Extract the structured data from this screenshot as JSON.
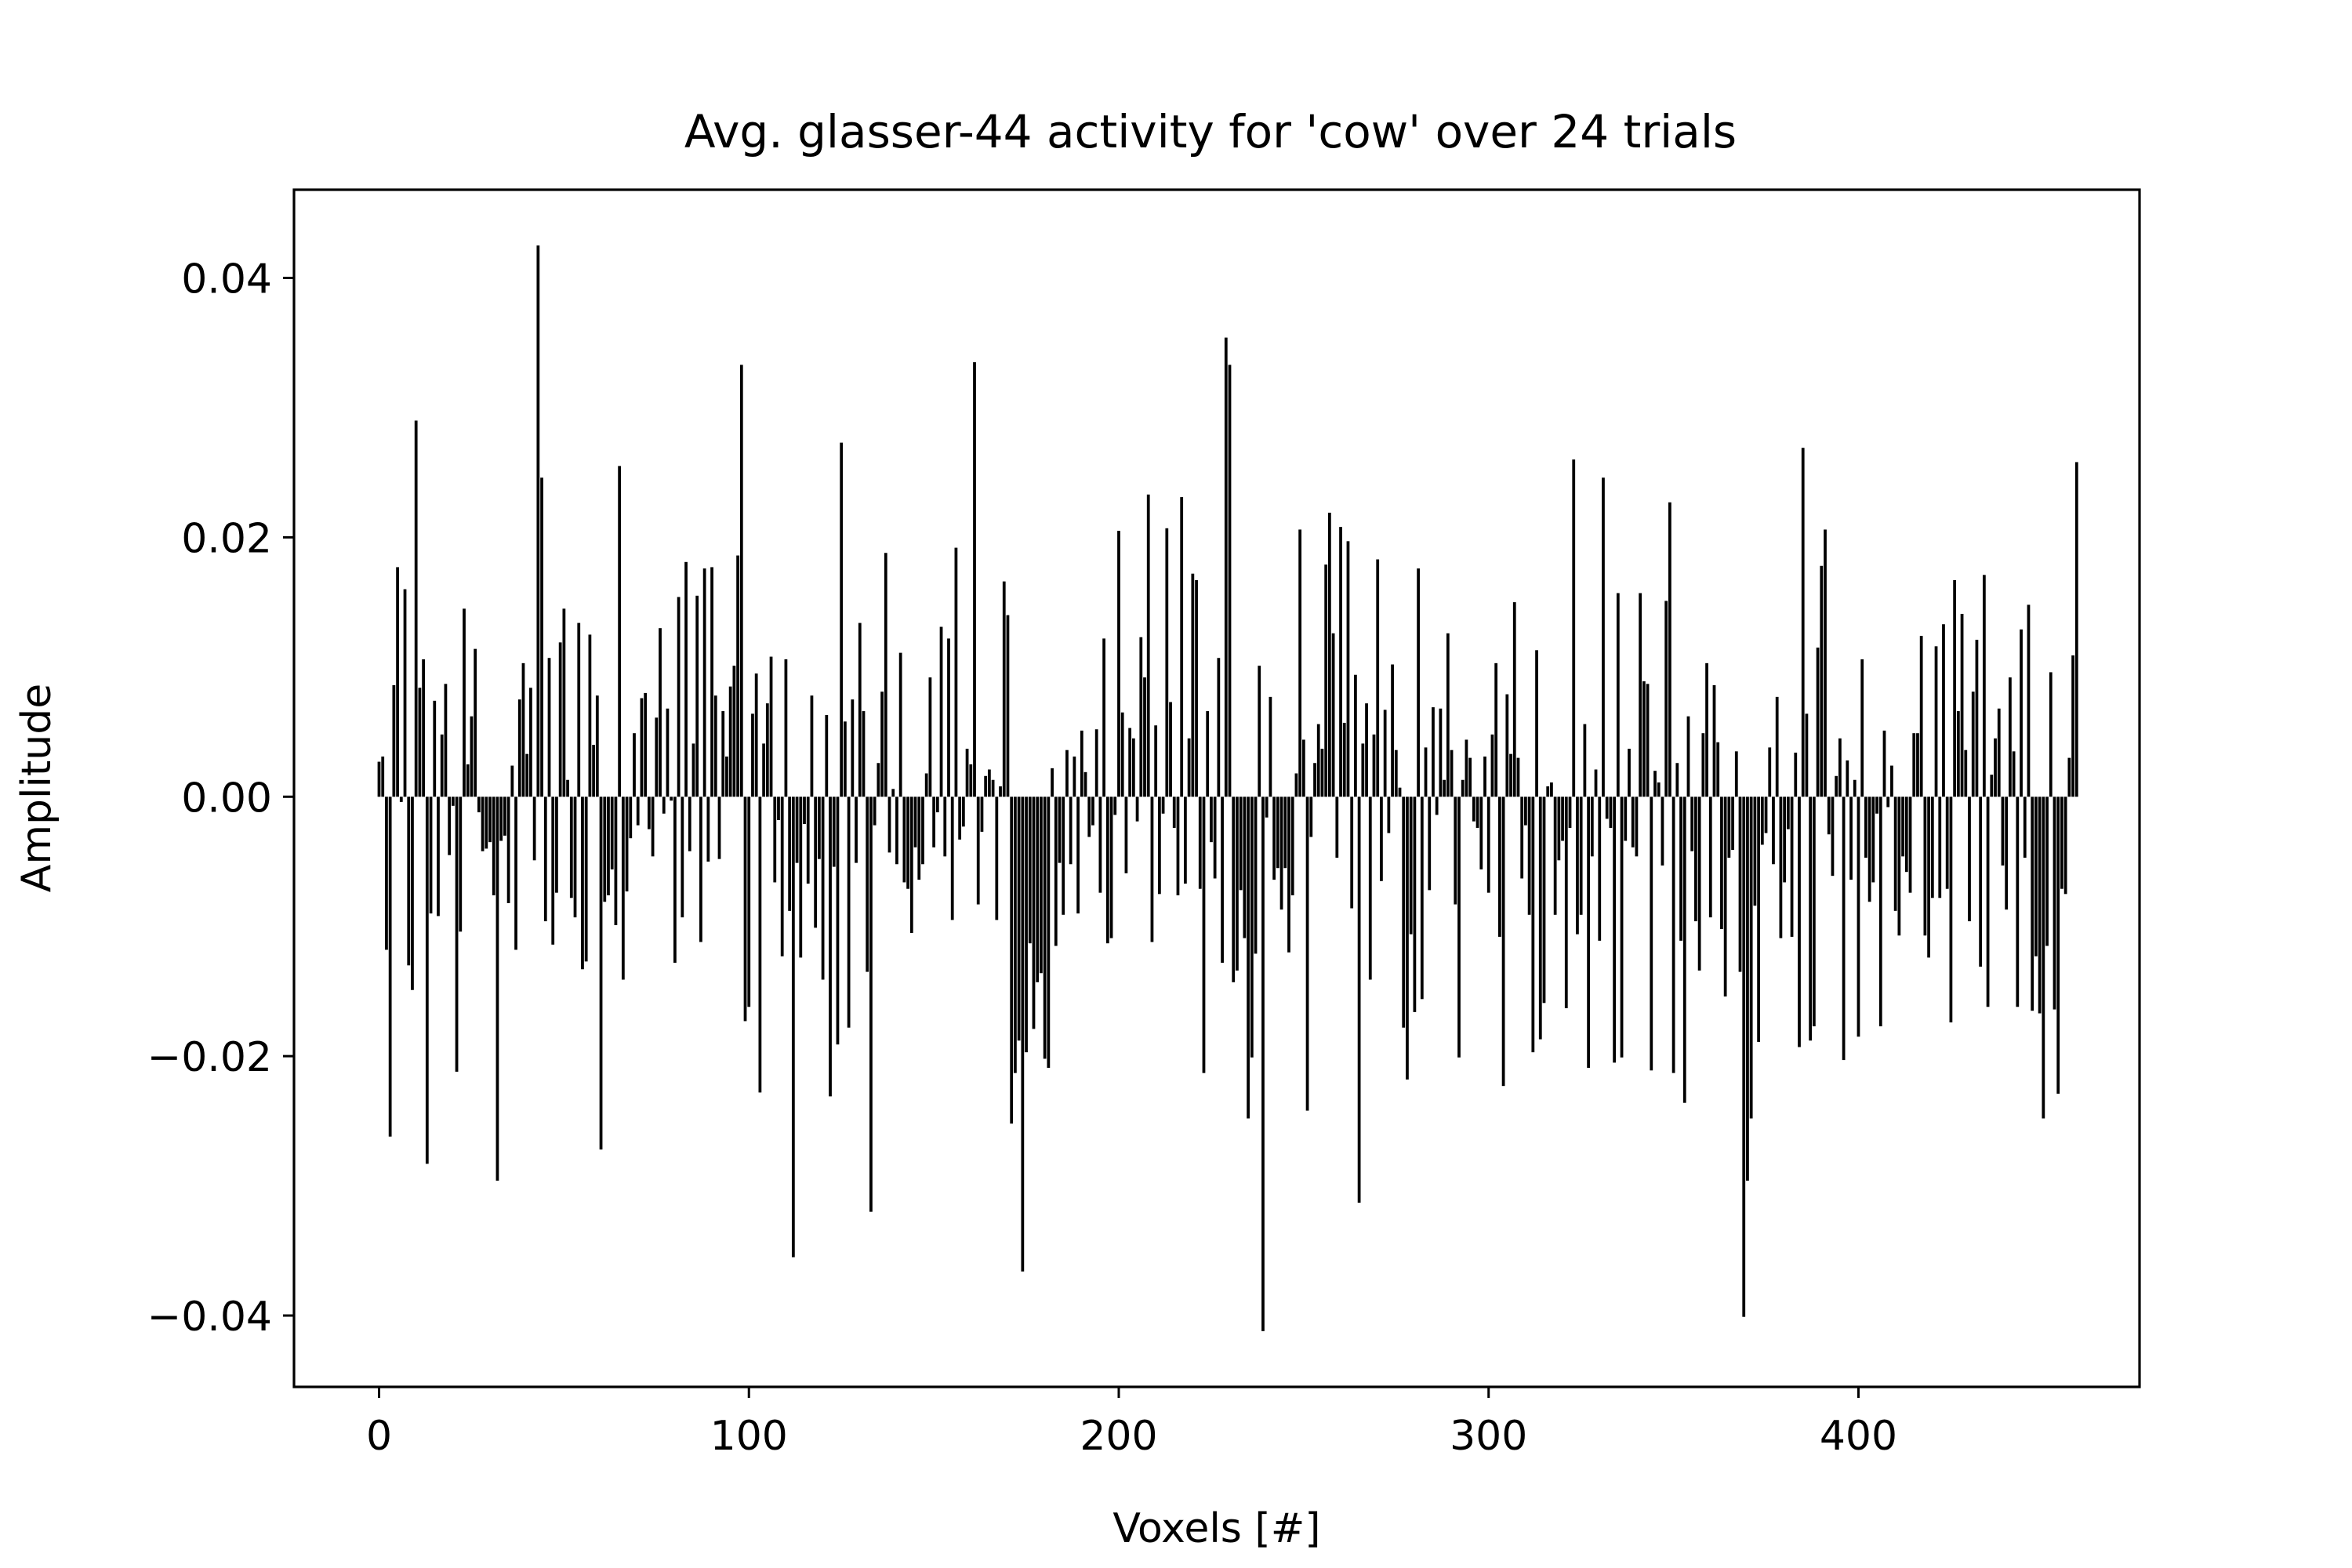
{
  "chart_data": {
    "type": "bar",
    "title": "Avg. glasser-44 activity for 'cow' over 24 trials",
    "xlabel": "Voxels [#]",
    "ylabel": "Amplitude",
    "xlim": [
      -23,
      476
    ],
    "ylim": [
      -0.0455,
      0.0468
    ],
    "xticks": [
      0,
      100,
      200,
      300,
      400
    ],
    "xtick_labels": [
      "0",
      "100",
      "200",
      "300",
      "400"
    ],
    "yticks": [
      0.04,
      0.02,
      0.0,
      -0.02,
      -0.04
    ],
    "ytick_labels": [
      "0.04",
      "0.02",
      "0.00",
      "−0.02",
      "−0.04"
    ],
    "grid": false,
    "bar_color": "#000000",
    "values": [
      0.0027,
      0.0031,
      -0.0118,
      -0.0262,
      0.0086,
      0.0177,
      -0.0004,
      0.016,
      -0.013,
      -0.0149,
      0.029,
      0.0084,
      0.0106,
      -0.0283,
      -0.009,
      0.0074,
      -0.0092,
      0.0048,
      0.0087,
      -0.0045,
      -0.0007,
      -0.0212,
      -0.0104,
      0.0145,
      0.0025,
      0.0062,
      0.0114,
      -0.0012,
      -0.0042,
      -0.004,
      -0.0035,
      -0.0076,
      -0.0296,
      -0.0034,
      -0.003,
      -0.0082,
      0.0024,
      -0.0118,
      0.0075,
      0.0103,
      0.0033,
      0.0084,
      -0.0049,
      0.0425,
      0.0246,
      -0.0096,
      0.0107,
      -0.0114,
      -0.0074,
      0.0119,
      0.0145,
      0.0013,
      -0.0078,
      -0.0093,
      0.0134,
      -0.0133,
      -0.0127,
      0.0125,
      0.004,
      0.0078,
      -0.0272,
      -0.0081,
      -0.0076,
      -0.0056,
      -0.0099,
      0.0255,
      -0.0141,
      -0.0073,
      -0.0032,
      0.0049,
      -0.0022,
      0.0076,
      0.008,
      -0.0025,
      -0.0046,
      0.0061,
      0.013,
      -0.0013,
      0.0068,
      -0.0003,
      -0.0128,
      0.0154,
      -0.0093,
      0.0181,
      -0.0042,
      0.0041,
      0.0155,
      -0.0112,
      0.0176,
      -0.005,
      0.0177,
      0.0078,
      -0.0048,
      0.0066,
      0.0031,
      0.0085,
      0.0101,
      0.0186,
      0.0333,
      -0.0173,
      -0.0162,
      0.0064,
      0.0095,
      -0.0228,
      0.0041,
      0.0072,
      0.0108,
      -0.0066,
      -0.0018,
      -0.0123,
      0.0106,
      -0.0088,
      -0.0355,
      -0.0051,
      -0.0124,
      -0.0021,
      -0.0067,
      0.0078,
      -0.0101,
      -0.0048,
      -0.0141,
      0.0063,
      -0.0231,
      -0.0054,
      -0.0191,
      0.0273,
      0.0058,
      -0.0178,
      0.0075,
      -0.0051,
      0.0134,
      0.0066,
      -0.0135,
      -0.032,
      -0.0022,
      0.0026,
      0.0081,
      0.0188,
      -0.0043,
      0.0006,
      -0.0052,
      0.0111,
      -0.0066,
      -0.0071,
      -0.0105,
      -0.0039,
      -0.0064,
      -0.0052,
      0.0018,
      0.0092,
      -0.0039,
      -0.0012,
      0.0131,
      -0.0046,
      0.0122,
      -0.0095,
      0.0192,
      -0.0033,
      -0.0023,
      0.0037,
      0.0025,
      0.0335,
      -0.0083,
      -0.0027,
      0.0016,
      0.0021,
      0.0013,
      -0.0095,
      0.0008,
      0.0166,
      0.014,
      -0.0252,
      -0.0213,
      -0.0188,
      -0.0366,
      -0.0197,
      -0.0113,
      -0.0179,
      -0.0143,
      -0.0136,
      -0.0202,
      -0.0209,
      0.0022,
      -0.0115,
      -0.0051,
      -0.0091,
      0.0036,
      -0.0052,
      0.0031,
      -0.009,
      0.0051,
      0.0019,
      -0.0031,
      -0.0022,
      0.0052,
      -0.0074,
      0.0122,
      -0.0113,
      -0.0109,
      -0.0014,
      0.0205,
      0.0065,
      -0.0059,
      0.0053,
      0.0045,
      -0.0019,
      0.0123,
      0.0092,
      0.0233,
      -0.0112,
      0.0055,
      -0.0075,
      -0.0013,
      0.0207,
      0.0073,
      -0.0024,
      -0.0076,
      0.0231,
      -0.0067,
      0.0045,
      0.0172,
      0.0167,
      -0.0071,
      -0.0213,
      0.0066,
      -0.0035,
      -0.0063,
      0.0107,
      -0.0128,
      0.0354,
      0.0333,
      -0.0143,
      -0.0134,
      -0.0072,
      -0.0109,
      -0.0248,
      -0.0201,
      -0.0121,
      0.0101,
      -0.0412,
      -0.0016,
      0.0077,
      -0.0064,
      -0.0055,
      -0.0087,
      -0.0055,
      -0.012,
      -0.0076,
      0.0018,
      0.0206,
      0.0044,
      -0.0242,
      -0.0031,
      0.0026,
      0.0056,
      0.0037,
      0.0179,
      0.0219,
      0.0126,
      -0.0047,
      0.0208,
      0.0057,
      0.0197,
      -0.0086,
      0.0094,
      -0.0313,
      0.0041,
      0.0072,
      -0.0141,
      0.0048,
      0.0183,
      -0.0065,
      0.0067,
      -0.0028,
      0.0102,
      0.0036,
      0.0007,
      -0.0178,
      -0.0218,
      -0.0106,
      -0.0166,
      0.0176,
      -0.0156,
      0.0038,
      -0.0072,
      0.0069,
      -0.0014,
      0.0068,
      0.0013,
      0.0126,
      0.0036,
      -0.0083,
      -0.0201,
      0.0013,
      0.0044,
      0.003,
      -0.0019,
      -0.0024,
      -0.0056,
      0.0031,
      -0.0074,
      0.0048,
      0.0103,
      -0.0108,
      -0.0223,
      0.0079,
      0.0033,
      0.015,
      0.003,
      -0.0063,
      -0.0022,
      -0.0091,
      -0.0197,
      0.0113,
      -0.0187,
      -0.0159,
      0.0008,
      0.0011,
      -0.0091,
      -0.0049,
      -0.0034,
      -0.0163,
      -0.0024,
      0.026,
      -0.0106,
      -0.0091,
      0.0056,
      -0.0209,
      -0.0046,
      0.0021,
      -0.0111,
      0.0246,
      -0.0017,
      -0.0024,
      -0.0205,
      0.0157,
      -0.0201,
      -0.0034,
      0.0037,
      -0.0039,
      -0.0046,
      0.0157,
      0.0089,
      0.0087,
      -0.0211,
      0.002,
      0.0011,
      -0.0053,
      0.0151,
      0.0227,
      -0.0213,
      0.0026,
      -0.0111,
      -0.0236,
      0.0062,
      -0.0042,
      -0.0096,
      -0.0134,
      0.0049,
      0.0103,
      -0.0093,
      0.0086,
      0.0042,
      -0.0102,
      -0.0154,
      -0.0047,
      -0.0041,
      0.0035,
      -0.0135,
      -0.0401,
      -0.0296,
      -0.0248,
      -0.0084,
      -0.0189,
      -0.0037,
      -0.0028,
      0.0038,
      -0.0052,
      0.0077,
      -0.0109,
      -0.0066,
      -0.0025,
      -0.0108,
      0.0034,
      -0.0193,
      0.0269,
      0.0064,
      -0.0188,
      -0.0177,
      0.0115,
      0.0178,
      0.0206,
      -0.0029,
      -0.0061,
      0.0016,
      0.0045,
      -0.0203,
      0.0028,
      -0.0064,
      0.0013,
      -0.0185,
      0.0106,
      -0.0047,
      -0.0081,
      -0.0066,
      -0.0013,
      -0.0177,
      0.0051,
      -0.0008,
      0.0024,
      -0.0088,
      -0.0107,
      -0.0046,
      -0.0058,
      -0.0074,
      0.0049,
      0.0049,
      0.0124,
      -0.0107,
      -0.0124,
      -0.0078,
      0.0116,
      -0.0078,
      0.0133,
      -0.0071,
      -0.0174,
      0.0167,
      0.0066,
      0.0141,
      0.0036,
      -0.0096,
      0.0081,
      0.0121,
      -0.0131,
      0.0171,
      -0.0162,
      0.0017,
      0.0045,
      0.0068,
      -0.0053,
      -0.0087,
      0.0092,
      0.0035,
      -0.0162,
      0.0129,
      -0.0047,
      0.0148,
      -0.0165,
      -0.0123,
      -0.0167,
      -0.0248,
      -0.0115,
      0.0096,
      -0.0164,
      -0.0229,
      -0.0071,
      -0.0075,
      0.003,
      0.0109,
      0.0258
    ]
  }
}
